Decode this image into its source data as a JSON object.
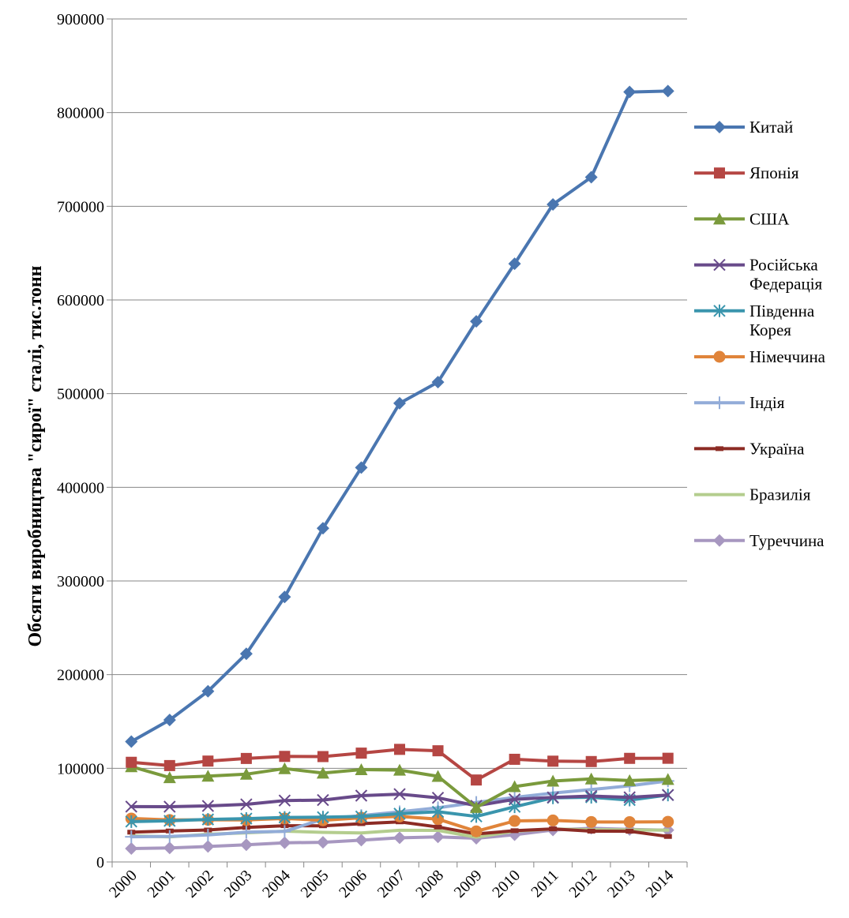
{
  "chart_data": {
    "type": "line",
    "title": "",
    "xlabel": "",
    "ylabel": "Обсяги виробництва \"сирої\" сталі, тис.тонн",
    "ylim": [
      0,
      900000
    ],
    "yticks": [
      0,
      100000,
      200000,
      300000,
      400000,
      500000,
      600000,
      700000,
      800000,
      900000
    ],
    "ytick_labels": [
      "0",
      "100000",
      "200000",
      "300000",
      "400000",
      "500000",
      "600000",
      "700000",
      "800000",
      "900000"
    ],
    "categories": [
      "2000",
      "2001",
      "2002",
      "2003",
      "2004",
      "2005",
      "2006",
      "2007",
      "2008",
      "2009",
      "2010",
      "2011",
      "2012",
      "2013",
      "2014"
    ],
    "grid": true,
    "legend_position": "right",
    "series": [
      {
        "name": "Китай",
        "color": "#4a76b0",
        "marker": "diamond",
        "values": [
          128500,
          151600,
          182200,
          222300,
          282900,
          356200,
          421000,
          489700,
          512300,
          577100,
          638700,
          702000,
          731000,
          822000,
          823000
        ]
      },
      {
        "name": "Японія",
        "color": "#b54643",
        "marker": "square",
        "values": [
          106400,
          102900,
          107700,
          110500,
          112700,
          112500,
          116200,
          120200,
          118700,
          87500,
          109600,
          107600,
          107200,
          110600,
          110700
        ]
      },
      {
        "name": "США",
        "color": "#7a9a3c",
        "marker": "triangle",
        "values": [
          101800,
          90100,
          91600,
          93700,
          99700,
          94900,
          98600,
          98100,
          91400,
          58200,
          80500,
          86400,
          88700,
          86900,
          88200
        ]
      },
      {
        "name": "Російська Федерація",
        "color": "#684a8a",
        "marker": "x",
        "values": [
          59100,
          59000,
          59800,
          61500,
          65600,
          66100,
          70800,
          72400,
          68500,
          60000,
          66900,
          68900,
          70400,
          69000,
          71500
        ]
      },
      {
        "name": "Південна Корея",
        "color": "#3a95ad",
        "marker": "asterisk",
        "values": [
          43100,
          43900,
          45400,
          46300,
          47500,
          47800,
          48500,
          51500,
          53600,
          48600,
          58900,
          68500,
          69100,
          66100,
          71500
        ]
      },
      {
        "name": "Німеччина",
        "color": "#e0843a",
        "marker": "circle",
        "values": [
          46400,
          44800,
          45000,
          44800,
          46400,
          44500,
          47200,
          48600,
          45800,
          32700,
          43800,
          44300,
          42700,
          42600,
          42900
        ]
      },
      {
        "name": "Індія",
        "color": "#92acd8",
        "marker": "plus",
        "values": [
          26900,
          27300,
          28800,
          31800,
          32600,
          45800,
          49500,
          53500,
          57800,
          63500,
          68900,
          73500,
          77300,
          81300,
          86500
        ]
      },
      {
        "name": "Україна",
        "color": "#8c2b24",
        "marker": "dash",
        "values": [
          31800,
          33100,
          34100,
          36900,
          38700,
          38600,
          40900,
          42800,
          37300,
          29900,
          33400,
          35300,
          32900,
          32800,
          27200
        ]
      },
      {
        "name": "Бразилія",
        "color": "#b4cd8e",
        "marker": "none",
        "values": [
          27900,
          26700,
          29600,
          31100,
          32900,
          31600,
          30900,
          33800,
          33700,
          26500,
          32900,
          35200,
          34500,
          34200,
          33900
        ]
      },
      {
        "name": "Туреччина",
        "color": "#a797c0",
        "marker": "diamond",
        "values": [
          14300,
          15000,
          16500,
          18300,
          20500,
          21000,
          23300,
          25800,
          26800,
          25300,
          29100,
          34100,
          35900,
          34700,
          34000
        ]
      }
    ]
  }
}
